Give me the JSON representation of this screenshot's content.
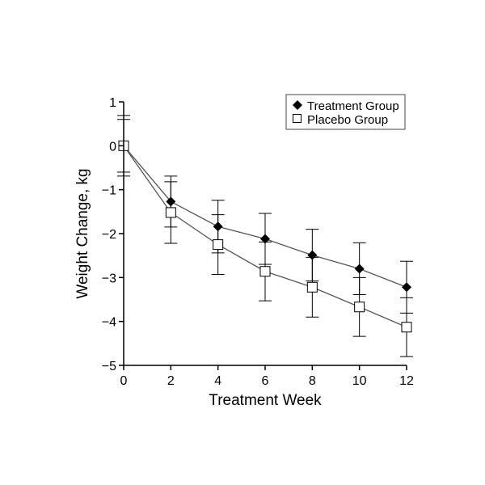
{
  "chart_data": {
    "type": "line",
    "title": "",
    "xlabel": "Treatment Week",
    "ylabel": "Weight Change, kg",
    "xlim": [
      0,
      12
    ],
    "ylim": [
      -5,
      1
    ],
    "x_ticks": [
      0,
      2,
      4,
      6,
      8,
      10,
      12
    ],
    "x_tick_labels": [
      "0",
      "2",
      "4",
      "6",
      "8",
      "10",
      "12"
    ],
    "y_ticks": [
      1,
      0,
      -1,
      -2,
      -3,
      -4,
      -5
    ],
    "y_tick_labels": [
      "1",
      "0",
      "−1",
      "−2",
      "−3",
      "−4",
      "−5"
    ],
    "grid": false,
    "legend_position": "top-right",
    "x": [
      0,
      2,
      4,
      6,
      8,
      10,
      12
    ],
    "series": [
      {
        "name": "Treatment Group",
        "marker": "diamond-filled",
        "values": [
          0,
          -1.27,
          -1.84,
          -2.12,
          -2.49,
          -2.8,
          -3.22
        ],
        "error": [
          0.6,
          0.58,
          0.6,
          0.58,
          0.59,
          0.59,
          0.59
        ]
      },
      {
        "name": "Placebo Group",
        "marker": "square-open",
        "values": [
          0,
          -1.52,
          -2.25,
          -2.86,
          -3.22,
          -3.67,
          -4.13
        ],
        "error": [
          0.69,
          0.7,
          0.68,
          0.67,
          0.68,
          0.67,
          0.67
        ]
      }
    ],
    "colors": {
      "line": "#555555",
      "error": "#000000",
      "marker": "#000000"
    }
  }
}
